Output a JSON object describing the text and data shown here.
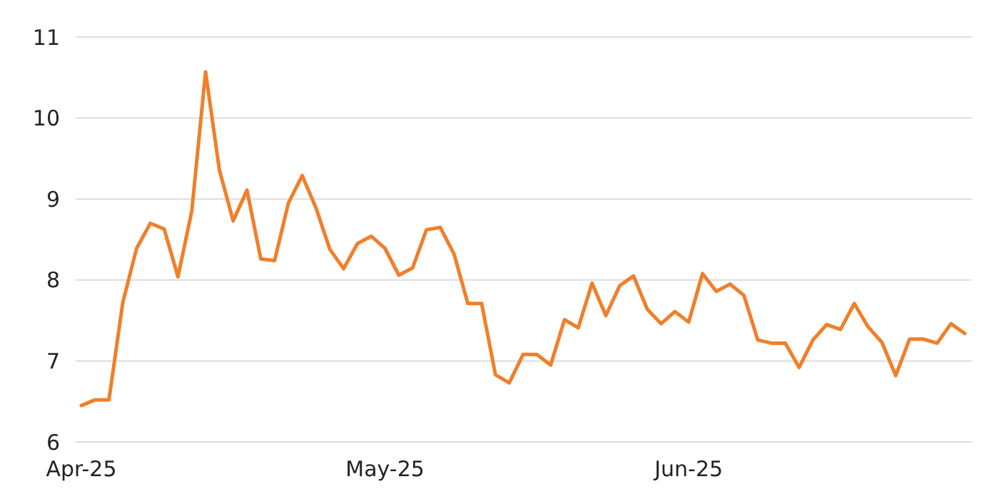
{
  "chart_data": {
    "type": "line",
    "categories": [
      "Apr-25",
      null,
      null,
      null,
      null,
      null,
      null,
      null,
      null,
      null,
      null,
      null,
      null,
      null,
      null,
      null,
      null,
      null,
      null,
      null,
      null,
      null,
      "May-25",
      null,
      null,
      null,
      null,
      null,
      null,
      null,
      null,
      null,
      null,
      null,
      null,
      null,
      null,
      null,
      null,
      null,
      null,
      null,
      null,
      null,
      "Jun-25",
      null,
      null,
      null,
      null,
      null,
      null,
      null,
      null,
      null,
      null,
      null,
      null,
      null,
      null,
      null,
      null,
      null,
      null,
      null,
      null
    ],
    "series": [
      {
        "color": "#f07f2a",
        "values": [
          6.45,
          6.52,
          6.52,
          7.72,
          8.39,
          8.7,
          8.63,
          8.04,
          8.85,
          10.57,
          9.36,
          8.73,
          9.11,
          8.26,
          8.24,
          8.95,
          9.29,
          8.89,
          8.38,
          8.14,
          8.45,
          8.54,
          8.39,
          8.06,
          8.15,
          8.62,
          8.65,
          8.32,
          7.71,
          7.71,
          6.83,
          6.73,
          7.08,
          7.08,
          6.95,
          7.51,
          7.41,
          7.96,
          7.56,
          7.93,
          8.05,
          7.64,
          7.46,
          7.61,
          7.48,
          8.08,
          7.86,
          7.95,
          7.81,
          7.26,
          7.22,
          7.22,
          6.92,
          7.26,
          7.45,
          7.39,
          7.71,
          7.42,
          7.23,
          6.82,
          7.27,
          7.27,
          7.22,
          7.46,
          7.34
        ]
      }
    ],
    "ylim": [
      6,
      11
    ],
    "yticks": [
      6,
      7,
      8,
      9,
      10,
      11
    ],
    "grid": "y",
    "marker": "none",
    "line_style": "solid"
  }
}
